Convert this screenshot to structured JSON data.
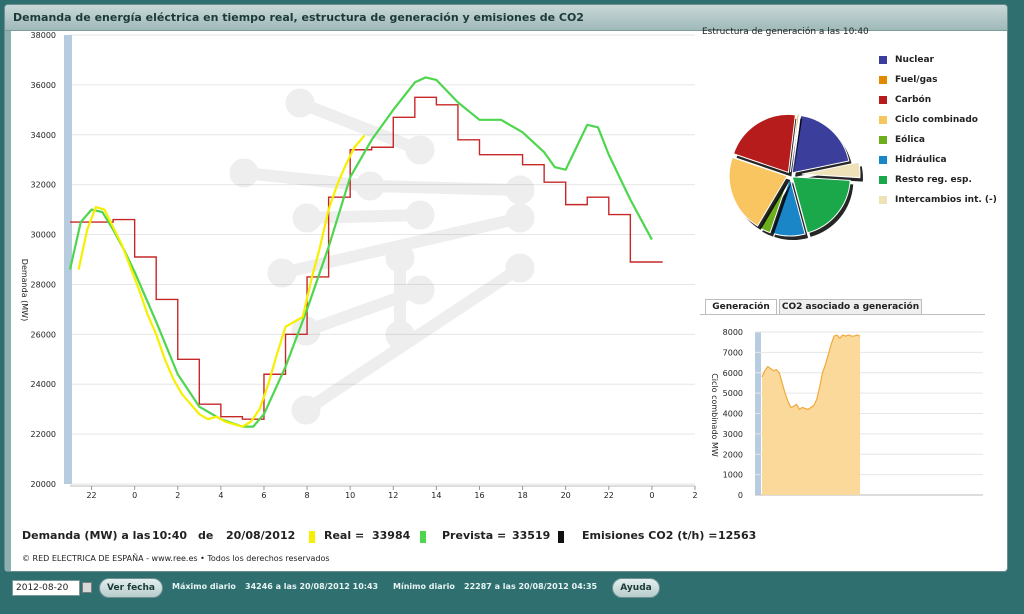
{
  "window": {
    "title": "Demanda de energía eléctrica en tiempo real, estructura de generación y emisiones de CO2"
  },
  "colors": {
    "real": "#f6f000",
    "prevista": "#4ed64e",
    "programada": "#c62828",
    "emisiones": "#111111"
  },
  "demand_chart": {
    "ylabel": "Demanda (MW)"
  },
  "pie": {
    "title": "Estructura de generación a las 10:40"
  },
  "legend": [
    {
      "label": "Nuclear",
      "color": "#3b3f9b"
    },
    {
      "label": "Fuel/gas",
      "color": "#e08a00"
    },
    {
      "label": "Carbón",
      "color": "#b71c1c"
    },
    {
      "label": "Ciclo combinado",
      "color": "#f9c561"
    },
    {
      "label": "Eólica",
      "color": "#6cae1c"
    },
    {
      "label": "Hidráulica",
      "color": "#1b86c7"
    },
    {
      "label": "Resto reg. esp.",
      "color": "#1aa84b"
    },
    {
      "label": "Intercambios int. (-)",
      "color": "#efe1b8"
    }
  ],
  "tabs": [
    "Generación",
    "CO2 asociado a generación"
  ],
  "mini_chart": {
    "ylabel": "Ciclo combinado MW"
  },
  "status": {
    "demanda_label": "Demanda (MW) a las",
    "hora": "10:40",
    "de": "de",
    "fecha": "20/08/2012",
    "real_label": "Real =",
    "real_value": "33984",
    "prevista_label": "Prevista =",
    "prevista_value": "33519",
    "emisiones_label": "Emisiones CO2 (t/h) =",
    "emisiones_value": "12563"
  },
  "copyright": "© RED ELECTRICA DE ESPAÑA - www.ree.es • Todos los derechos reservados",
  "bottom": {
    "date_value": "2012-08-20",
    "ver_fecha": "Ver fecha",
    "maximo_label": "Máximo diario",
    "maximo_value": "34246 a las 20/08/2012 10:43",
    "minimo_label": "Mínimo diario",
    "minimo_value": "22287 a las 20/08/2012 04:35",
    "ayuda": "Ayuda"
  },
  "chart_data": [
    {
      "type": "line",
      "ylabel": "Demanda (MW)",
      "ylim": [
        20000,
        38000
      ],
      "y_ticks": [
        20000,
        22000,
        24000,
        26000,
        28000,
        30000,
        32000,
        34000,
        36000,
        38000
      ],
      "x_ticks": [
        "22",
        "0",
        "2",
        "4",
        "6",
        "8",
        "10",
        "12",
        "14",
        "16",
        "18",
        "20",
        "22",
        "0",
        "2"
      ],
      "xlim": [
        -3,
        26
      ],
      "grid": true,
      "series": [
        {
          "name": "Real",
          "color": "#f6f000",
          "x": [
            -2.6,
            -2.2,
            -1.8,
            -1.4,
            -1.0,
            -0.6,
            -0.2,
            0.2,
            0.6,
            1.0,
            1.4,
            1.8,
            2.2,
            2.6,
            3.0,
            3.4,
            3.8,
            4.2,
            4.6,
            5.0,
            5.4,
            5.8,
            6.2,
            6.6,
            7.0,
            7.4,
            7.8,
            8.2,
            8.6,
            9.0,
            9.4,
            9.8,
            10.2,
            10.5,
            10.67
          ],
          "y": [
            28600,
            30200,
            31100,
            31000,
            30300,
            29600,
            28700,
            27800,
            26800,
            26000,
            25000,
            24200,
            23600,
            23200,
            22800,
            22600,
            22700,
            22500,
            22400,
            22300,
            22500,
            23000,
            24000,
            25200,
            26300,
            26500,
            26700,
            28200,
            29500,
            31000,
            32000,
            32800,
            33500,
            33800,
            33984
          ]
        },
        {
          "name": "Prevista",
          "color": "#4ed64e",
          "x": [
            -3,
            -2.5,
            -2,
            -1.5,
            -1,
            -0.5,
            0,
            1,
            2,
            3,
            4,
            5,
            5.5,
            6,
            7,
            8,
            9,
            10,
            11,
            12,
            13,
            13.5,
            14,
            15,
            16,
            17,
            18,
            19,
            19.5,
            20,
            20.5,
            21,
            21.5,
            22,
            23,
            24
          ],
          "y": [
            28600,
            30500,
            31000,
            30900,
            30200,
            29400,
            28500,
            26500,
            24400,
            23100,
            22600,
            22300,
            22300,
            22800,
            24700,
            27000,
            29500,
            32300,
            33800,
            35000,
            36100,
            36300,
            36200,
            35300,
            34600,
            34600,
            34100,
            33300,
            32700,
            32600,
            33500,
            34400,
            34300,
            33200,
            31400,
            29800
          ]
        },
        {
          "name": "Programada",
          "color": "#c62828",
          "x": [
            -3,
            -1,
            0,
            1,
            2,
            3,
            4,
            5,
            6,
            7,
            8,
            9,
            10,
            11,
            12,
            13,
            14,
            15,
            16,
            17,
            18,
            19,
            20,
            21,
            22,
            23,
            24
          ],
          "y": [
            30500,
            30600,
            29100,
            27400,
            25000,
            23200,
            22700,
            22600,
            24400,
            26000,
            28300,
            31500,
            33400,
            33500,
            34700,
            35500,
            35200,
            33800,
            33200,
            33200,
            32800,
            32100,
            31200,
            31500,
            30800,
            28900,
            28900
          ]
        }
      ]
    },
    {
      "type": "pie",
      "title": "Estructura de generación a las 10:40",
      "labels": [
        "Nuclear",
        "Fuel/gas",
        "Carbón",
        "Ciclo combinado",
        "Eólica",
        "Hidráulica",
        "Resto reg. esp.",
        "Intercambios int. (-)"
      ],
      "values": [
        20.5,
        0.5,
        23.0,
        23.0,
        3.5,
        10.0,
        21.0,
        4.5
      ]
    },
    {
      "type": "area",
      "ylabel": "Ciclo combinado MW",
      "ylim": [
        0,
        8000
      ],
      "y_ticks": [
        0,
        1000,
        2000,
        3000,
        4000,
        5000,
        6000,
        7000,
        8000
      ],
      "grid": true,
      "x": [
        0,
        1,
        2,
        3,
        4,
        5,
        6,
        7,
        8,
        9,
        10,
        11,
        12,
        13,
        14,
        15,
        16,
        17,
        18,
        19,
        20,
        21,
        22,
        23,
        24,
        25,
        26,
        27,
        28,
        29,
        30,
        31,
        32,
        33,
        34
      ],
      "values": [
        5800,
        6100,
        6300,
        6200,
        6100,
        6150,
        6000,
        5500,
        5000,
        4600,
        4300,
        4350,
        4450,
        4200,
        4300,
        4250,
        4200,
        4300,
        4400,
        4700,
        5300,
        6000,
        6400,
        6900,
        7400,
        7800,
        7850,
        7700,
        7850,
        7800,
        7850,
        7800,
        7800,
        7850,
        7800
      ]
    }
  ]
}
